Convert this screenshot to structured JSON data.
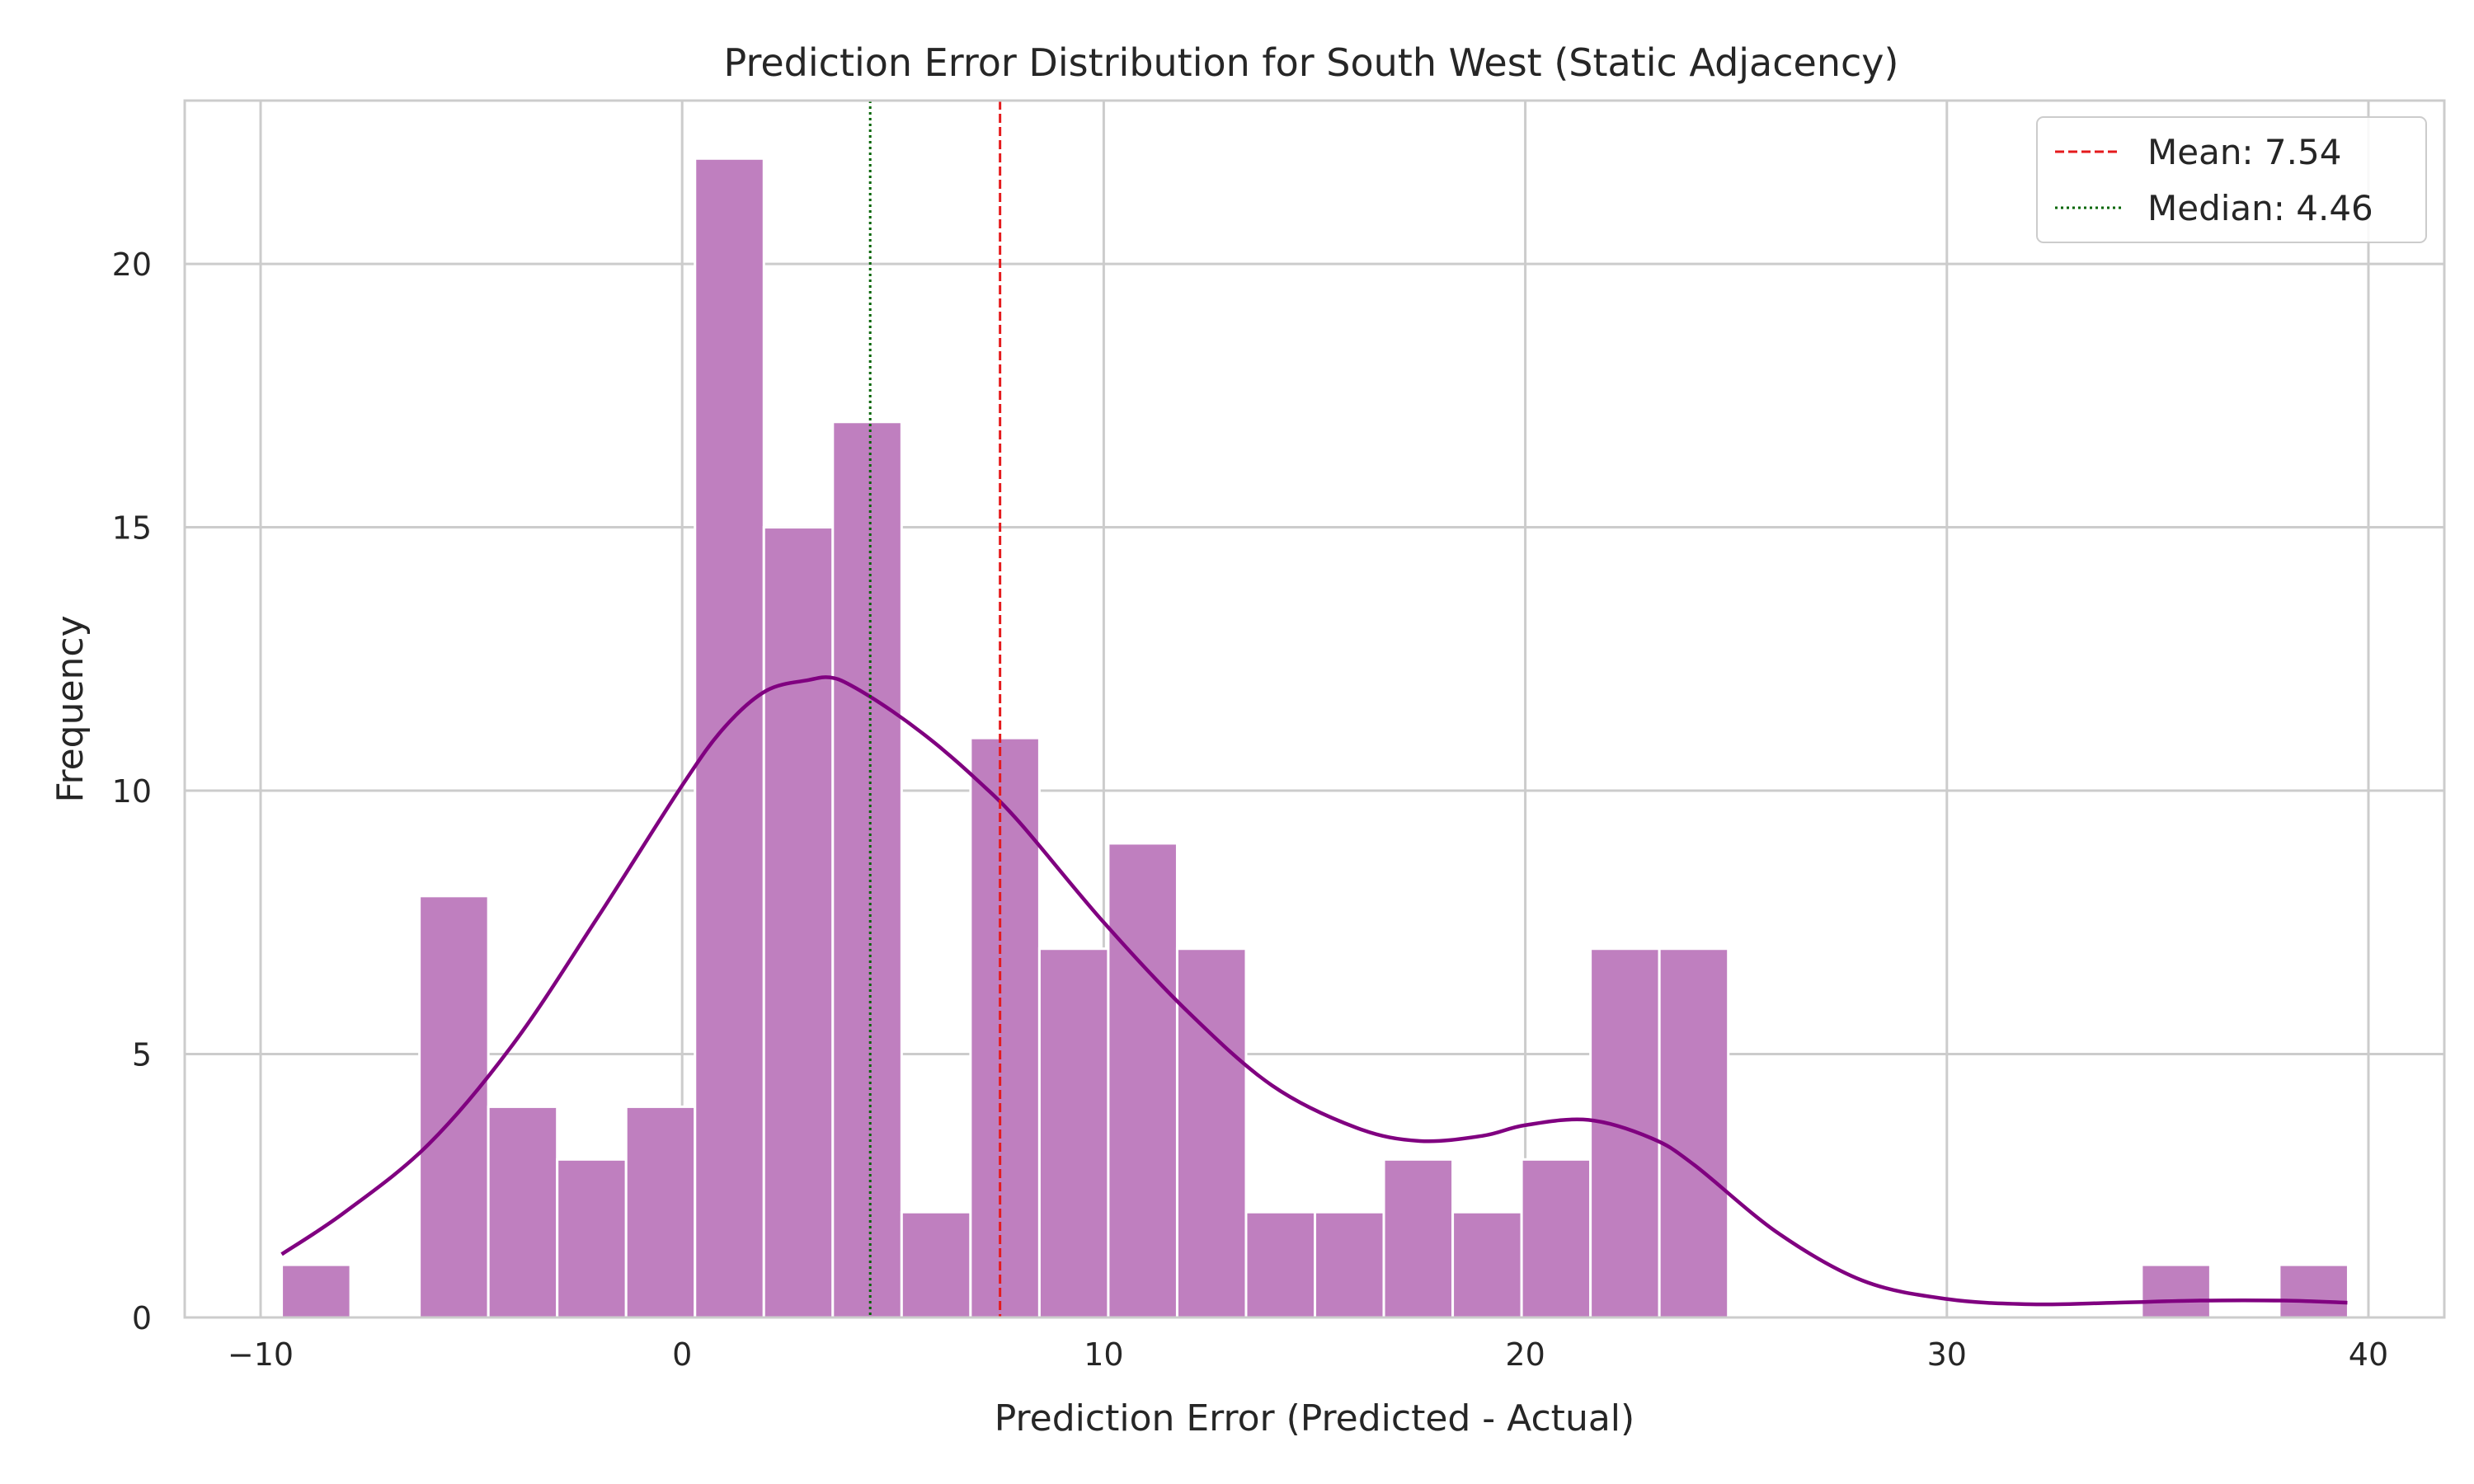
{
  "chart_data": {
    "type": "bar",
    "title": "Prediction Error Distribution for South West (Static Adjacency)",
    "xlabel": "Prediction Error (Predicted - Actual)",
    "ylabel": "Frequency",
    "xlim": [
      -11.8,
      41.8
    ],
    "ylim": [
      0,
      23.1
    ],
    "xticks": [
      -10,
      0,
      10,
      20,
      30,
      40
    ],
    "xtick_labels": [
      "−10",
      "0",
      "10",
      "20",
      "30",
      "40"
    ],
    "yticks": [
      0,
      5,
      10,
      15,
      20
    ],
    "ytick_labels": [
      "0",
      "5",
      "10",
      "15",
      "20"
    ],
    "grid": true,
    "legend_position": "top-right",
    "bar_color": "#bf7fbf",
    "kde_color": "#800080",
    "bins": {
      "start": -9.5,
      "width": 1.634,
      "counts": [
        1,
        0,
        8,
        4,
        3,
        4,
        22,
        15,
        17,
        2,
        11,
        7,
        9,
        7,
        2,
        2,
        3,
        2,
        3,
        7,
        7,
        0,
        0,
        0,
        0,
        0,
        0,
        1,
        0,
        1
      ]
    },
    "kde": {
      "x": [
        -9.5,
        -8,
        -6,
        -4,
        -2,
        0,
        1,
        2,
        3,
        3.5,
        4,
        5,
        6,
        7,
        8,
        10,
        12,
        14,
        16,
        17.5,
        19,
        20,
        21.5,
        23,
        24,
        26,
        28,
        30,
        32,
        34,
        36,
        38,
        39.5
      ],
      "y": [
        1.2,
        2.0,
        3.3,
        5.2,
        7.6,
        10.1,
        11.2,
        11.9,
        12.1,
        12.15,
        12.0,
        11.5,
        10.9,
        10.2,
        9.4,
        7.5,
        5.8,
        4.4,
        3.6,
        3.35,
        3.45,
        3.65,
        3.75,
        3.4,
        2.9,
        1.6,
        0.7,
        0.35,
        0.25,
        0.28,
        0.32,
        0.32,
        0.28
      ]
    },
    "lines": [
      {
        "name": "Mean: 7.54",
        "value": 7.54,
        "color": "#e41a1c",
        "style": "dashed"
      },
      {
        "name": "Median: 4.46",
        "value": 4.46,
        "color": "#006400",
        "style": "dotted"
      }
    ]
  }
}
